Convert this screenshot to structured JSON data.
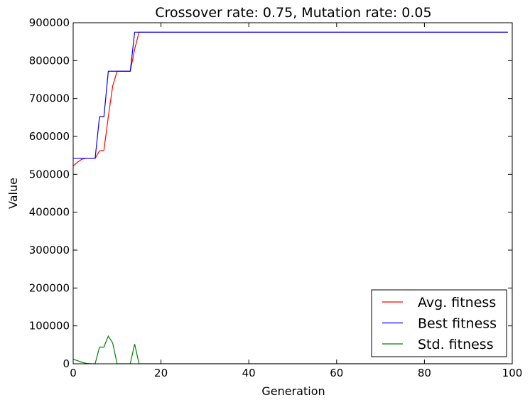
{
  "chart_data": {
    "type": "line",
    "title": "Crossover rate: 0.75, Mutation rate: 0.05",
    "xlabel": "Generation",
    "ylabel": "Value",
    "xlim": [
      0,
      100
    ],
    "ylim": [
      0,
      900000
    ],
    "xticks": [
      0,
      20,
      40,
      60,
      80,
      100
    ],
    "yticks": [
      0,
      100000,
      200000,
      300000,
      400000,
      500000,
      600000,
      700000,
      800000,
      900000
    ],
    "xtick_labels": [
      "0",
      "20",
      "40",
      "60",
      "80",
      "100"
    ],
    "ytick_labels": [
      "0",
      "100000",
      "200000",
      "300000",
      "400000",
      "500000",
      "600000",
      "700000",
      "800000",
      "900000"
    ],
    "grid": false,
    "legend_position": "lower-right",
    "series": [
      {
        "name": "Avg. fitness",
        "color": "#ff0000",
        "x": [
          0,
          1,
          2,
          3,
          4,
          5,
          6,
          7,
          8,
          9,
          10,
          11,
          12,
          13,
          14,
          15,
          99
        ],
        "y": [
          522000,
          532000,
          540000,
          542000,
          542000,
          542000,
          562000,
          563000,
          652000,
          733000,
          772000,
          772000,
          772000,
          772000,
          830000,
          875000,
          875000
        ]
      },
      {
        "name": "Best fitness",
        "color": "#0000ff",
        "x": [
          0,
          1,
          2,
          3,
          4,
          5,
          6,
          7,
          8,
          9,
          10,
          11,
          12,
          13,
          14,
          15,
          99
        ],
        "y": [
          542000,
          542000,
          542000,
          542000,
          542000,
          542000,
          652000,
          652000,
          772000,
          772000,
          772000,
          772000,
          772000,
          772000,
          875000,
          875000,
          875000
        ]
      },
      {
        "name": "Std. fitness",
        "color": "#008000",
        "x": [
          0,
          1,
          2,
          3,
          4,
          5,
          6,
          7,
          8,
          9,
          10,
          11,
          12,
          13,
          14,
          15,
          99
        ],
        "y": [
          12000,
          8000,
          4000,
          1000,
          0,
          0,
          44000,
          44000,
          73000,
          55000,
          0,
          0,
          0,
          0,
          52000,
          0,
          0
        ]
      }
    ]
  }
}
